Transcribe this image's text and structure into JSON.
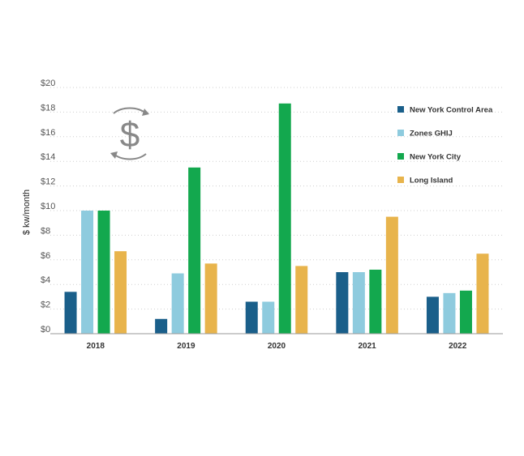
{
  "chart_data": {
    "type": "bar",
    "categories": [
      "2018",
      "2019",
      "2020",
      "2021",
      "2022"
    ],
    "series": [
      {
        "name": "New York Control Area",
        "color": "#1a5f8a",
        "values": [
          3.4,
          1.2,
          2.6,
          5.0,
          3.0
        ]
      },
      {
        "name": "Zones GHIJ",
        "color": "#8ecbde",
        "values": [
          10.0,
          4.9,
          2.6,
          5.0,
          3.3
        ]
      },
      {
        "name": "New York City",
        "color": "#13a84e",
        "values": [
          10.0,
          13.5,
          18.7,
          5.2,
          3.5
        ]
      },
      {
        "name": "Long Island",
        "color": "#e8b44c",
        "values": [
          6.7,
          5.7,
          5.5,
          9.5,
          6.5
        ]
      }
    ],
    "ylabel": "$ kw/month",
    "ylim": [
      0,
      20
    ],
    "yticks": [
      "$0",
      "$2",
      "$4",
      "$6",
      "$8",
      "$10",
      "$12",
      "$14",
      "$16",
      "$18",
      "$20"
    ],
    "grid": true,
    "legend_position": "top-right",
    "icon": "dollar-cycle-icon"
  }
}
